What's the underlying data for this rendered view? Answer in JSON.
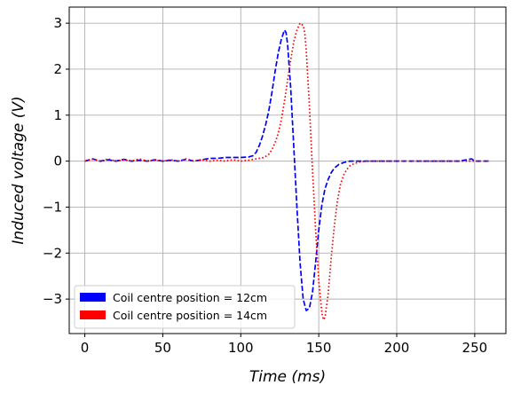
{
  "chart_data": {
    "type": "line",
    "xlabel": "Time (ms)",
    "ylabel": "Induced voltage (V)",
    "xlim": [
      -10,
      270
    ],
    "ylim": [
      -3.75,
      3.35
    ],
    "xticks": [
      0,
      50,
      100,
      150,
      200,
      250
    ],
    "yticks": [
      -3,
      -2,
      -1,
      0,
      1,
      2,
      3
    ],
    "ytick_labels": [
      "−3",
      "−2",
      "−1",
      "0",
      "1",
      "2",
      "3"
    ],
    "grid": true,
    "legend_position": "lower-left",
    "series": [
      {
        "name": "Coil centre position = 12cm",
        "color": "#0000ff",
        "style": "dashed",
        "x": [
          0,
          5,
          10,
          15,
          20,
          25,
          30,
          35,
          40,
          45,
          50,
          55,
          60,
          65,
          70,
          75,
          80,
          85,
          90,
          95,
          100,
          105,
          108,
          110,
          112,
          114,
          116,
          118,
          120,
          122,
          124,
          126,
          128,
          129,
          130,
          132,
          134,
          136,
          138,
          140,
          142,
          144,
          146,
          148,
          150,
          152,
          154,
          156,
          158,
          160,
          163,
          166,
          170,
          175,
          180,
          190,
          200,
          210,
          220,
          230,
          240,
          248,
          250,
          255,
          260
        ],
        "y": [
          0.0,
          0.05,
          0.0,
          0.03,
          0.0,
          0.04,
          0.0,
          0.02,
          0.0,
          0.03,
          0.0,
          0.02,
          0.0,
          0.04,
          0.0,
          0.03,
          0.06,
          0.06,
          0.08,
          0.08,
          0.08,
          0.09,
          0.12,
          0.2,
          0.35,
          0.55,
          0.8,
          1.1,
          1.5,
          1.95,
          2.35,
          2.65,
          2.85,
          2.8,
          2.55,
          1.6,
          0.3,
          -1.0,
          -2.2,
          -3.0,
          -3.25,
          -3.2,
          -2.85,
          -2.2,
          -1.5,
          -0.95,
          -0.6,
          -0.4,
          -0.25,
          -0.15,
          -0.07,
          -0.03,
          0.0,
          0.0,
          0.0,
          0.0,
          0.0,
          0.0,
          0.0,
          0.0,
          0.0,
          0.05,
          0.0,
          0.0,
          0.0
        ]
      },
      {
        "name": "Coil centre position = 14cm",
        "color": "#ff0000",
        "style": "dotted",
        "x": [
          0,
          5,
          10,
          15,
          20,
          25,
          30,
          35,
          40,
          45,
          50,
          55,
          60,
          65,
          70,
          75,
          80,
          85,
          90,
          95,
          100,
          105,
          110,
          115,
          118,
          120,
          122,
          124,
          126,
          128,
          130,
          132,
          134,
          136,
          138,
          140,
          141,
          142,
          144,
          146,
          148,
          150,
          152,
          153,
          154,
          156,
          158,
          160,
          162,
          164,
          166,
          168,
          170,
          173,
          176,
          180,
          185,
          190,
          200,
          210,
          220,
          230,
          240,
          250,
          255,
          260
        ],
        "y": [
          0.0,
          0.04,
          0.0,
          0.05,
          0.0,
          0.03,
          0.0,
          0.05,
          0.0,
          0.02,
          0.0,
          0.03,
          0.0,
          0.05,
          0.0,
          0.03,
          0.0,
          0.02,
          0.0,
          0.03,
          0.0,
          0.02,
          0.05,
          0.08,
          0.15,
          0.25,
          0.4,
          0.6,
          0.9,
          1.3,
          1.75,
          2.2,
          2.6,
          2.85,
          3.0,
          2.95,
          2.8,
          2.4,
          1.2,
          -0.2,
          -1.5,
          -2.6,
          -3.3,
          -3.45,
          -3.4,
          -2.9,
          -2.1,
          -1.4,
          -0.85,
          -0.5,
          -0.3,
          -0.18,
          -0.1,
          -0.05,
          -0.02,
          0.0,
          0.0,
          0.0,
          0.0,
          0.0,
          0.0,
          0.0,
          0.0,
          0.0,
          0.0,
          0.0
        ]
      }
    ]
  }
}
